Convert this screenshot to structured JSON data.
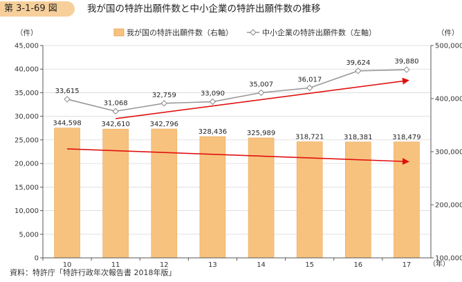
{
  "figure": {
    "number": "第 3-1-69 図",
    "title": "我が国の特許出願件数と中小企業の特許出願件数の推移"
  },
  "units": {
    "left": "（件）",
    "right": "（件）",
    "x": "（年）"
  },
  "source": "資料：特許庁「特許行政年次報告書 2018年版」",
  "colors": {
    "bar": "#f7c27e",
    "bar_edge": "#e8a85e",
    "line": "#999999",
    "trend": "#e01010",
    "badge": "#f6cf9b"
  },
  "chart_data": {
    "type": "bar",
    "categories": [
      "10",
      "11",
      "12",
      "13",
      "14",
      "15",
      "16",
      "17"
    ],
    "series": [
      {
        "name": "我が国の特許出願件数（右軸）",
        "type": "bar",
        "axis": "right",
        "values": [
          344598,
          342610,
          342796,
          328436,
          325989,
          318721,
          318381,
          318479
        ],
        "labels": [
          "344,598",
          "342,610",
          "342,796",
          "328,436",
          "325,989",
          "318,721",
          "318,381",
          "318,479"
        ]
      },
      {
        "name": "中小企業の特許出願件数（左軸）",
        "type": "line",
        "axis": "left",
        "values": [
          33615,
          31068,
          32759,
          33090,
          35007,
          36017,
          39624,
          39880
        ],
        "labels": [
          "33,615",
          "31,068",
          "32,759",
          "33,090",
          "35,007",
          "36,017",
          "39,624",
          "39,880"
        ]
      }
    ],
    "y_left": {
      "min": 0,
      "max": 45000,
      "ticks": [
        "0",
        "5,000",
        "10,000",
        "15,000",
        "20,000",
        "25,000",
        "30,000",
        "35,000",
        "40,000",
        "45,000"
      ]
    },
    "y_right": {
      "min": 100000,
      "max": 500000,
      "ticks": [
        "100,000",
        "200,000",
        "300,000",
        "400,000",
        "500,000"
      ]
    },
    "trend_arrows": [
      {
        "axis": "left",
        "from": {
          "x": "11",
          "y": 29500
        },
        "to": {
          "x": "17",
          "y": 37600
        }
      },
      {
        "axis": "left",
        "from": {
          "x": "10",
          "y": 23100
        },
        "to": {
          "x": "17",
          "y": 20400
        }
      }
    ],
    "legend_position": "top"
  }
}
